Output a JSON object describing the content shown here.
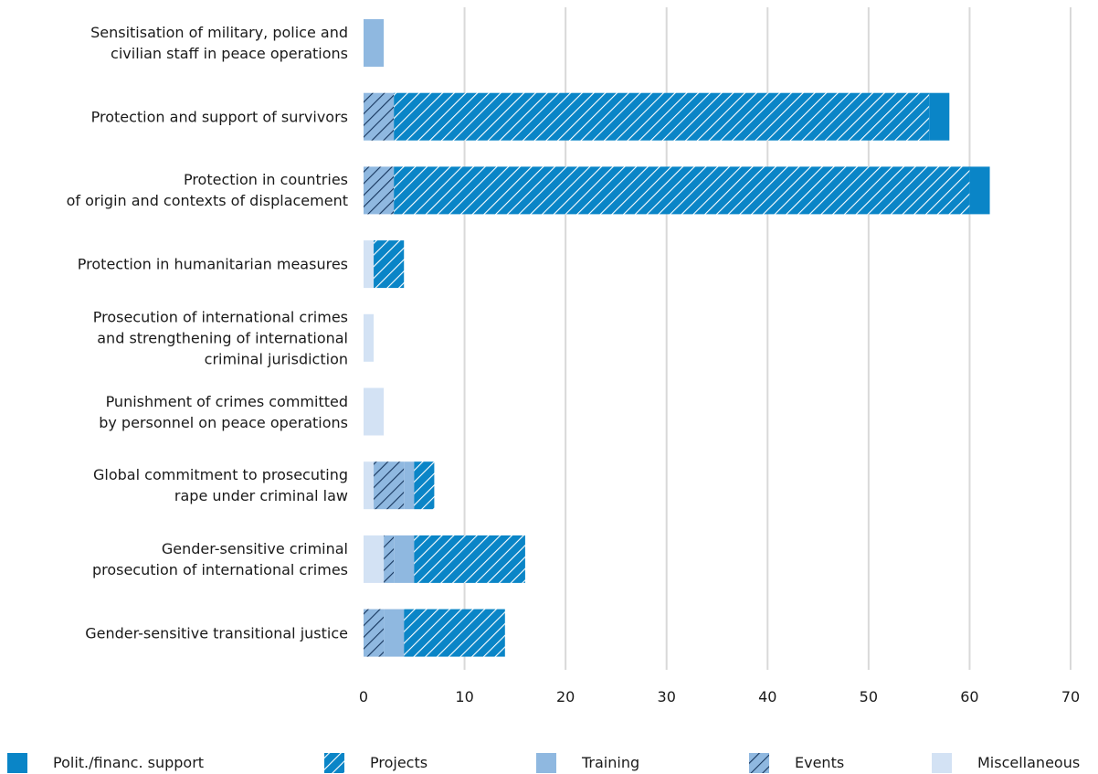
{
  "chart_data": {
    "type": "stacked-barh",
    "categories": [
      "Sensitisation of military, police and\ncivilian staff in peace operations",
      "Protection and support of survivors",
      "Protection in countries\nof origin and contexts of displacement",
      "Protection in humanitarian measures",
      "Prosecution of international crimes\nand strengthening of international\ncriminal jurisdiction",
      "Punishment of crimes committed\nby personnel on peace operations",
      "Global commitment to prosecuting\nrape under criminal law",
      "Gender-sensitive criminal\nprosecution of international crimes",
      "Gender-sensitive transitional justice"
    ],
    "series": [
      {
        "name": "Miscellaneous",
        "color": "#d3e2f4",
        "hatch": false,
        "values": [
          0,
          0,
          0,
          1,
          1,
          2,
          1,
          2,
          0
        ]
      },
      {
        "name": "Events",
        "color": "#8fb8e0",
        "hatch": true,
        "hatch_color": "#17365d",
        "values": [
          0,
          3,
          3,
          0,
          0,
          0,
          3,
          1,
          2
        ]
      },
      {
        "name": "Training",
        "color": "#8fb8e0",
        "hatch": false,
        "values": [
          2,
          0,
          0,
          0,
          0,
          0,
          1,
          2,
          2
        ]
      },
      {
        "name": "Projects",
        "color": "#0a85c7",
        "hatch": true,
        "hatch_color": "#ffffff",
        "values": [
          0,
          53,
          57,
          3,
          0,
          0,
          2,
          11,
          10
        ]
      },
      {
        "name": "Polit./financ. support",
        "color": "#0a85c7",
        "hatch": false,
        "values": [
          0,
          2,
          2,
          0,
          0,
          0,
          0,
          0,
          0
        ]
      }
    ],
    "legend_order": [
      4,
      3,
      2,
      1,
      0
    ],
    "xlim": [
      0,
      70
    ],
    "xticks": [
      0,
      10,
      20,
      30,
      40,
      50,
      60,
      70
    ],
    "grid": true,
    "legend": "bottom"
  }
}
